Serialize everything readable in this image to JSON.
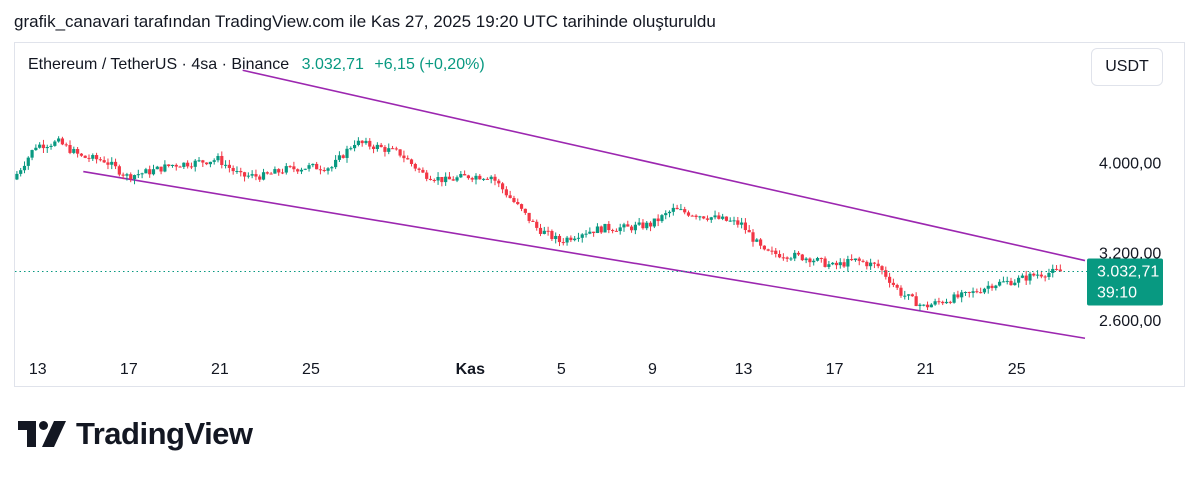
{
  "caption": "grafik_canavari tarafından TradingView.com ile Kas 27, 2025 19:20 UTC tarihinde oluşturuldu",
  "header": {
    "symbol": "Ethereum / TetherUS · 4sa · Binance",
    "price": "3.032,71",
    "change": "+6,15 (+0,20%)",
    "currency_button": "USDT"
  },
  "brand": {
    "name": "TradingView",
    "logo_icon": "tradingview-logo-icon"
  },
  "colors": {
    "up": "#089981",
    "down": "#f23645",
    "channel": "#9c27b0",
    "price_line": "#089981"
  },
  "chart_data": {
    "type": "candlestick",
    "title": "Ethereum / TetherUS · 4sa · Binance",
    "ylim": [
      2380,
      4600
    ],
    "y_ticks": [
      {
        "value": 4000,
        "label": "4.000,00"
      },
      {
        "value": 3200,
        "label": "3.200,00"
      },
      {
        "value": 2600,
        "label": "2.600,00"
      }
    ],
    "x_ticks": [
      {
        "date": "2025-10-13",
        "label": "13",
        "bold": false
      },
      {
        "date": "2025-10-17",
        "label": "17",
        "bold": false
      },
      {
        "date": "2025-10-21",
        "label": "21",
        "bold": false
      },
      {
        "date": "2025-10-25",
        "label": "25",
        "bold": false
      },
      {
        "date": "2025-11-01",
        "label": "Kas",
        "bold": true
      },
      {
        "date": "2025-11-05",
        "label": "5",
        "bold": false
      },
      {
        "date": "2025-11-09",
        "label": "9",
        "bold": false
      },
      {
        "date": "2025-11-13",
        "label": "13",
        "bold": false
      },
      {
        "date": "2025-11-17",
        "label": "17",
        "bold": false
      },
      {
        "date": "2025-11-21",
        "label": "21",
        "bold": false
      },
      {
        "date": "2025-11-25",
        "label": "25",
        "bold": false
      }
    ],
    "x_range": [
      "2025-10-12",
      "2025-11-28"
    ],
    "close_path": [
      [
        "2025-10-12",
        3850
      ],
      [
        "2025-10-13",
        4150
      ],
      [
        "2025-10-14",
        4180
      ],
      [
        "2025-10-15",
        4050
      ],
      [
        "2025-10-16",
        4020
      ],
      [
        "2025-10-17",
        3880
      ],
      [
        "2025-10-18",
        3920
      ],
      [
        "2025-10-19",
        3980
      ],
      [
        "2025-10-20",
        4000
      ],
      [
        "2025-10-21",
        4030
      ],
      [
        "2025-10-22",
        3880
      ],
      [
        "2025-10-23",
        3880
      ],
      [
        "2025-10-24",
        3940
      ],
      [
        "2025-10-25",
        3960
      ],
      [
        "2025-10-26",
        3960
      ],
      [
        "2025-10-27",
        4180
      ],
      [
        "2025-10-28",
        4140
      ],
      [
        "2025-10-29",
        4080
      ],
      [
        "2025-10-30",
        3900
      ],
      [
        "2025-10-31",
        3840
      ],
      [
        "2025-11-01",
        3880
      ],
      [
        "2025-11-02",
        3880
      ],
      [
        "2025-11-03",
        3650
      ],
      [
        "2025-11-04",
        3420
      ],
      [
        "2025-11-05",
        3300
      ],
      [
        "2025-11-06",
        3380
      ],
      [
        "2025-11-07",
        3420
      ],
      [
        "2025-11-08",
        3420
      ],
      [
        "2025-11-09",
        3450
      ],
      [
        "2025-11-10",
        3580
      ],
      [
        "2025-11-11",
        3540
      ],
      [
        "2025-11-12",
        3500
      ],
      [
        "2025-11-13",
        3450
      ],
      [
        "2025-11-14",
        3200
      ],
      [
        "2025-11-15",
        3180
      ],
      [
        "2025-11-16",
        3150
      ],
      [
        "2025-11-17",
        3080
      ],
      [
        "2025-11-18",
        3130
      ],
      [
        "2025-11-19",
        3080
      ],
      [
        "2025-11-20",
        2840
      ],
      [
        "2025-11-21",
        2720
      ],
      [
        "2025-11-22",
        2780
      ],
      [
        "2025-11-23",
        2830
      ],
      [
        "2025-11-24",
        2920
      ],
      [
        "2025-11-25",
        2950
      ],
      [
        "2025-11-26",
        3010
      ],
      [
        "2025-11-27",
        3032.71
      ]
    ],
    "channel_lines": [
      {
        "name": "upper",
        "from": [
          "2025-10-22",
          4820
        ],
        "to": [
          "2025-11-28",
          3130
        ]
      },
      {
        "name": "lower",
        "from": [
          "2025-10-15",
          3920
        ],
        "to": [
          "2025-11-28",
          2440
        ]
      }
    ],
    "last_price": {
      "value": 3032.71,
      "label": "3.032,71",
      "countdown": "39:10"
    }
  }
}
